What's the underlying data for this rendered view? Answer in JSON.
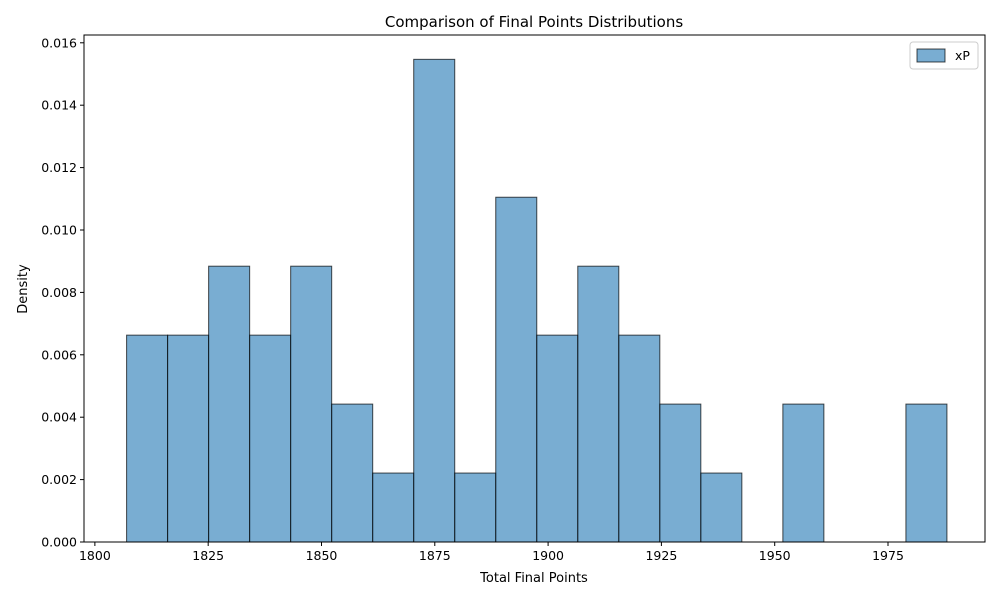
{
  "chart_data": {
    "type": "bar",
    "title": "Comparison of Final Points Distributions",
    "xlabel": "Total Final Points",
    "ylabel": "Density",
    "xlim": [
      1797.6,
      1996.4
    ],
    "ylim": [
      0,
      0.01625
    ],
    "x_ticks": [
      1800,
      1825,
      1850,
      1875,
      1900,
      1925,
      1950,
      1975
    ],
    "y_ticks": [
      0.0,
      0.002,
      0.004,
      0.006,
      0.008,
      0.01,
      0.012,
      0.014,
      0.016
    ],
    "y_tick_labels": [
      "0.000",
      "0.002",
      "0.004",
      "0.006",
      "0.008",
      "0.010",
      "0.012",
      "0.014",
      "0.016"
    ],
    "grid": false,
    "legend": {
      "position": "top-right"
    },
    "series": [
      {
        "name": "xP",
        "color": "#1f77b4",
        "bin_edges": [
          1807.0,
          1816.05,
          1825.1,
          1834.15,
          1843.2,
          1852.25,
          1861.3,
          1870.35,
          1879.4,
          1888.45,
          1897.5,
          1906.55,
          1915.6,
          1924.65,
          1933.7,
          1942.75,
          1951.8,
          1960.85,
          1969.9,
          1978.95,
          1988.0
        ],
        "values": [
          0.00663,
          0.00663,
          0.00884,
          0.00663,
          0.00884,
          0.00442,
          0.00221,
          0.01547,
          0.00221,
          0.01105,
          0.00663,
          0.00884,
          0.00663,
          0.00442,
          0.00221,
          0.0,
          0.00442,
          0.0,
          0.0,
          0.00442
        ]
      }
    ]
  }
}
